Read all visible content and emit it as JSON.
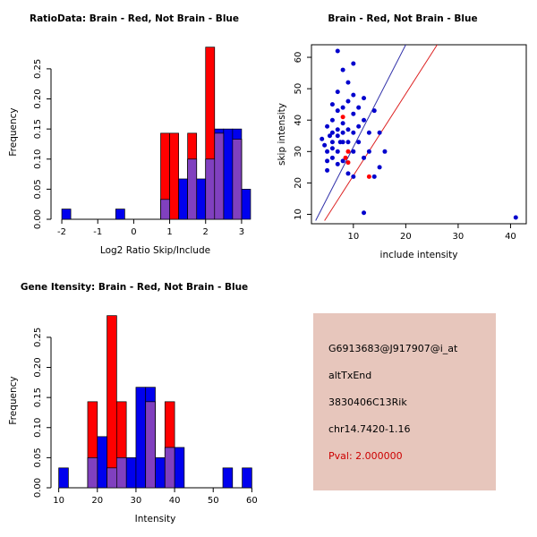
{
  "figure": {
    "bg_color": "#FFFFFF"
  },
  "chart_data": [
    {
      "id": "ratio-hist",
      "type": "bar",
      "subtype": "overlaid-histogram",
      "title": "RatioData: Brain - Red, Not Brain - Blue",
      "xlabel": "Log2 Ratio Skip/Include",
      "ylabel": "Frequency",
      "xlim": [
        -2.3,
        3.5
      ],
      "ylim": [
        0,
        0.29
      ],
      "xticks": [
        -2,
        -1,
        0,
        1,
        2,
        3
      ],
      "yticks": [
        0,
        0.05,
        0.1,
        0.15,
        0.2,
        0.25
      ],
      "ytick_labels": [
        "0.00",
        "0.05",
        "0.10",
        "0.15",
        "0.20",
        "0.25"
      ],
      "bin_width": 0.25,
      "grid": false,
      "legend": "none",
      "series": [
        {
          "name": "Brain",
          "color": "#FF0000",
          "bins": [
            [
              0.75,
              0.143
            ],
            [
              1.0,
              0.143
            ],
            [
              1.5,
              0.143
            ],
            [
              2.0,
              0.286
            ],
            [
              2.25,
              0.143
            ],
            [
              2.75,
              0.133
            ]
          ]
        },
        {
          "name": "Not Brain",
          "color": "#0000EE",
          "bins": [
            [
              -2.0,
              0.017
            ],
            [
              -0.5,
              0.017
            ],
            [
              0.75,
              0.033
            ],
            [
              1.25,
              0.067
            ],
            [
              1.5,
              0.1
            ],
            [
              1.75,
              0.067
            ],
            [
              2.0,
              0.1
            ],
            [
              2.25,
              0.15
            ],
            [
              2.5,
              0.15
            ],
            [
              2.75,
              0.15
            ],
            [
              3.0,
              0.05
            ]
          ]
        }
      ],
      "overlap_color": "#8040BF"
    },
    {
      "id": "scatter",
      "type": "scatter",
      "title": "Brain - Red, Not Brain - Blue",
      "xlabel": "include intensity",
      "ylabel": "skip intensity",
      "xlim": [
        2,
        43
      ],
      "ylim": [
        7,
        64
      ],
      "xticks": [
        10,
        20,
        30,
        40
      ],
      "yticks": [
        10,
        20,
        30,
        40,
        50,
        60
      ],
      "grid": false,
      "legend": "none",
      "series": [
        {
          "name": "Not Brain",
          "color": "#0000CD",
          "points": [
            [
              4,
              34
            ],
            [
              4.5,
              32
            ],
            [
              5,
              38
            ],
            [
              5,
              30
            ],
            [
              5,
              27
            ],
            [
              5,
              24
            ],
            [
              5.5,
              35
            ],
            [
              6,
              45
            ],
            [
              6,
              40
            ],
            [
              6,
              36
            ],
            [
              6,
              33
            ],
            [
              6,
              31
            ],
            [
              6,
              28
            ],
            [
              7,
              62
            ],
            [
              7,
              49
            ],
            [
              7,
              43
            ],
            [
              7,
              37
            ],
            [
              7,
              35
            ],
            [
              7,
              30
            ],
            [
              7,
              26
            ],
            [
              7.5,
              33
            ],
            [
              8,
              56
            ],
            [
              8,
              44
            ],
            [
              8,
              39
            ],
            [
              8,
              36
            ],
            [
              8,
              33
            ],
            [
              8,
              27
            ],
            [
              9,
              52
            ],
            [
              9,
              46
            ],
            [
              9,
              37
            ],
            [
              9,
              33
            ],
            [
              9,
              23
            ],
            [
              10,
              58
            ],
            [
              10,
              48
            ],
            [
              10,
              42
            ],
            [
              10,
              36
            ],
            [
              10,
              30
            ],
            [
              10,
              22
            ],
            [
              11,
              44
            ],
            [
              11,
              38
            ],
            [
              11,
              33
            ],
            [
              12,
              47
            ],
            [
              12,
              40
            ],
            [
              12,
              28
            ],
            [
              12,
              10.5
            ],
            [
              13,
              36
            ],
            [
              13,
              30
            ],
            [
              14,
              43
            ],
            [
              14,
              22
            ],
            [
              15,
              36
            ],
            [
              15,
              25
            ],
            [
              16,
              30
            ],
            [
              41,
              9
            ]
          ]
        },
        {
          "name": "Brain",
          "color": "#FF0000",
          "points": [
            [
              8,
              41
            ],
            [
              9,
              30
            ],
            [
              8.5,
              28
            ],
            [
              9,
              26.5
            ],
            [
              13,
              22
            ]
          ]
        }
      ],
      "lines": [
        {
          "name": "not-brain-fit-line",
          "color": "#3333AA",
          "from": [
            2.8,
            8
          ],
          "to": [
            20,
            64
          ]
        },
        {
          "name": "brain-fit-line",
          "color": "#DD2222",
          "from": [
            4.5,
            8
          ],
          "to": [
            26,
            64
          ]
        }
      ]
    },
    {
      "id": "gene-hist",
      "type": "bar",
      "subtype": "overlaid-histogram",
      "title": "Gene Itensity: Brain - Red, Not Brain - Blue",
      "xlabel": "Intensity",
      "ylabel": "Frequency",
      "xlim": [
        8,
        62
      ],
      "ylim": [
        0,
        0.29
      ],
      "xticks": [
        10,
        20,
        30,
        40,
        50,
        60
      ],
      "yticks": [
        0,
        0.05,
        0.1,
        0.15,
        0.2,
        0.25
      ],
      "ytick_labels": [
        "0.00",
        "0.05",
        "0.10",
        "0.15",
        "0.20",
        "0.25"
      ],
      "bin_width": 2.5,
      "grid": false,
      "legend": "none",
      "series": [
        {
          "name": "Brain",
          "color": "#FF0000",
          "bins": [
            [
              17.5,
              0.143
            ],
            [
              22.5,
              0.286
            ],
            [
              25,
              0.143
            ],
            [
              32.5,
              0.143
            ],
            [
              37.5,
              0.143
            ]
          ]
        },
        {
          "name": "Not Brain",
          "color": "#0000EE",
          "bins": [
            [
              10,
              0.033
            ],
            [
              17.5,
              0.05
            ],
            [
              20,
              0.085
            ],
            [
              22.5,
              0.033
            ],
            [
              25,
              0.05
            ],
            [
              27.5,
              0.05
            ],
            [
              30,
              0.167
            ],
            [
              32.5,
              0.167
            ],
            [
              35,
              0.05
            ],
            [
              37.5,
              0.067
            ],
            [
              40,
              0.067
            ],
            [
              52.5,
              0.033
            ],
            [
              57.5,
              0.033
            ]
          ]
        }
      ],
      "overlap_color": "#8040BF"
    }
  ],
  "info_box": {
    "bg_color": "#E7C6BC",
    "lines": [
      {
        "label": "probe-id",
        "text": "G6913683@J917907@i_at",
        "color": "#000000"
      },
      {
        "label": "event-type",
        "text": "altTxEnd",
        "color": "#000000"
      },
      {
        "label": "gene-symbol",
        "text": "3830406C13Rik",
        "color": "#000000"
      },
      {
        "label": "locus",
        "text": "chr14.7420-1.16",
        "color": "#000000"
      },
      {
        "label": "pval",
        "text": "Pval: 2.000000",
        "color": "#CC0000"
      }
    ]
  }
}
